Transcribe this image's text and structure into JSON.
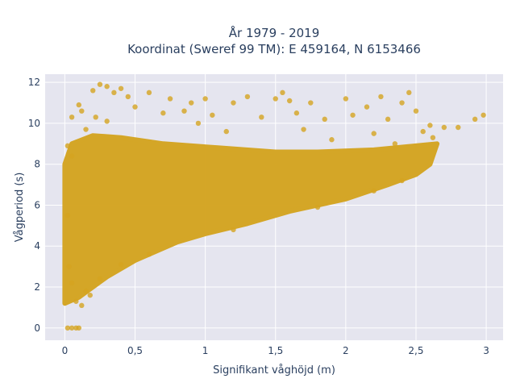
{
  "chart_data": {
    "type": "scatter",
    "title_line1": "År 1979 - 2019",
    "title_line2": "Koordinat (Sweref 99 TM): E 459164, N 6153466",
    "xlabel": "Signifikant våghöjd (m)",
    "ylabel": "Vågperiod (s)",
    "xlim": [
      -0.14,
      3.12
    ],
    "ylim": [
      -0.6,
      12.4
    ],
    "xticks": [
      {
        "value": 0,
        "label": "0"
      },
      {
        "value": 0.5,
        "label": "0,5"
      },
      {
        "value": 1,
        "label": "1"
      },
      {
        "value": 1.5,
        "label": "1,5"
      },
      {
        "value": 2,
        "label": "2"
      },
      {
        "value": 2.5,
        "label": "2,5"
      },
      {
        "value": 3,
        "label": "3"
      }
    ],
    "yticks": [
      {
        "value": 0,
        "label": "0"
      },
      {
        "value": 2,
        "label": "2"
      },
      {
        "value": 4,
        "label": "4"
      },
      {
        "value": 6,
        "label": "6"
      },
      {
        "value": 8,
        "label": "8"
      },
      {
        "value": 10,
        "label": "10"
      },
      {
        "value": 12,
        "label": "12"
      }
    ],
    "grid": true,
    "marker_color": "#d4a421",
    "plot_background": "#e5e5ef",
    "dense_region": [
      [
        0.0,
        1.2
      ],
      [
        0.1,
        1.5
      ],
      [
        0.3,
        2.5
      ],
      [
        0.5,
        3.3
      ],
      [
        0.8,
        4.2
      ],
      [
        1.0,
        4.6
      ],
      [
        1.3,
        5.1
      ],
      [
        1.6,
        5.7
      ],
      [
        2.0,
        6.3
      ],
      [
        2.3,
        7.0
      ],
      [
        2.5,
        7.5
      ],
      [
        2.6,
        8.0
      ],
      [
        2.65,
        9.0
      ],
      [
        2.5,
        8.9
      ],
      [
        2.2,
        8.7
      ],
      [
        1.8,
        8.6
      ],
      [
        1.5,
        8.6
      ],
      [
        1.1,
        8.8
      ],
      [
        0.7,
        9.0
      ],
      [
        0.4,
        9.3
      ],
      [
        0.2,
        9.4
      ],
      [
        0.05,
        9.0
      ],
      [
        0.0,
        8.0
      ],
      [
        0.0,
        4.0
      ]
    ],
    "points": [
      [
        0.02,
        0.0
      ],
      [
        0.05,
        0.0
      ],
      [
        0.08,
        0.0
      ],
      [
        0.1,
        0.0
      ],
      [
        0.12,
        1.1
      ],
      [
        0.08,
        1.3
      ],
      [
        0.25,
        2.4
      ],
      [
        0.4,
        3.1
      ],
      [
        0.25,
        11.9
      ],
      [
        0.3,
        11.8
      ],
      [
        0.2,
        11.6
      ],
      [
        0.35,
        11.5
      ],
      [
        0.4,
        11.7
      ],
      [
        0.45,
        11.3
      ],
      [
        0.6,
        11.5
      ],
      [
        0.75,
        11.2
      ],
      [
        0.9,
        11.0
      ],
      [
        1.0,
        11.2
      ],
      [
        1.2,
        11.0
      ],
      [
        1.3,
        11.3
      ],
      [
        1.5,
        11.2
      ],
      [
        1.6,
        11.1
      ],
      [
        1.55,
        11.5
      ],
      [
        1.75,
        11.0
      ],
      [
        2.0,
        11.2
      ],
      [
        2.15,
        10.8
      ],
      [
        2.25,
        11.3
      ],
      [
        2.4,
        11.0
      ],
      [
        2.45,
        11.5
      ],
      [
        0.1,
        10.9
      ],
      [
        0.05,
        10.3
      ],
      [
        0.12,
        10.6
      ],
      [
        0.5,
        10.8
      ],
      [
        0.7,
        10.5
      ],
      [
        0.85,
        10.6
      ],
      [
        1.05,
        10.4
      ],
      [
        1.4,
        10.3
      ],
      [
        1.65,
        10.5
      ],
      [
        1.85,
        10.2
      ],
      [
        2.05,
        10.4
      ],
      [
        2.3,
        10.2
      ],
      [
        2.5,
        10.6
      ],
      [
        2.6,
        9.9
      ],
      [
        2.7,
        9.8
      ],
      [
        2.8,
        9.8
      ],
      [
        2.92,
        10.2
      ],
      [
        2.98,
        10.4
      ],
      [
        2.55,
        9.6
      ],
      [
        2.62,
        9.3
      ],
      [
        0.02,
        8.9
      ],
      [
        0.05,
        8.4
      ],
      [
        0.15,
        9.7
      ],
      [
        0.3,
        10.1
      ],
      [
        1.9,
        9.2
      ],
      [
        2.2,
        9.5
      ],
      [
        2.35,
        9.0
      ],
      [
        0.22,
        10.3
      ],
      [
        1.15,
        9.6
      ],
      [
        0.95,
        10.0
      ],
      [
        1.7,
        9.7
      ],
      [
        0.02,
        5.5
      ],
      [
        0.03,
        3.0
      ],
      [
        0.05,
        2.2
      ],
      [
        0.15,
        1.8
      ],
      [
        0.18,
        1.6
      ],
      [
        0.6,
        3.6
      ],
      [
        1.2,
        4.8
      ],
      [
        1.8,
        5.9
      ],
      [
        2.2,
        6.7
      ],
      [
        2.4,
        7.2
      ]
    ]
  }
}
